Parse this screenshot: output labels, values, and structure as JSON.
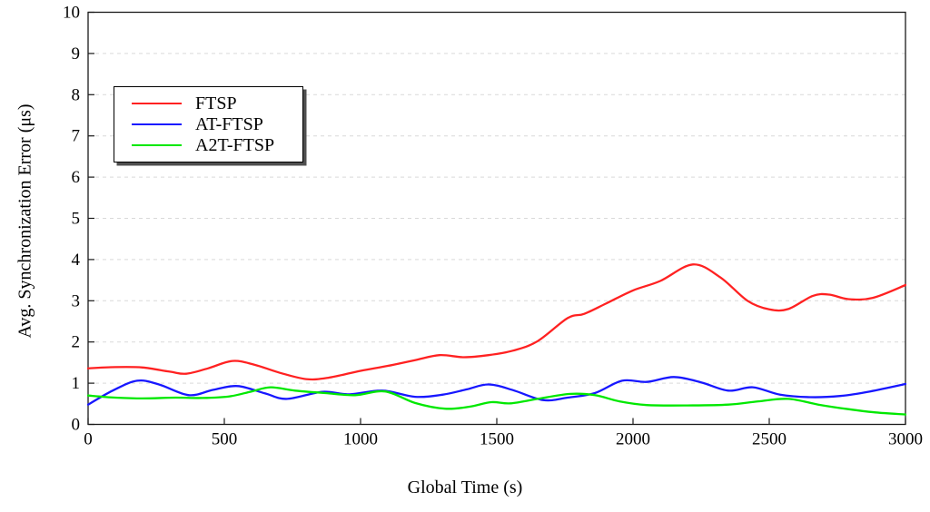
{
  "chart_data": {
    "type": "line",
    "title": "",
    "xlabel": "Global Time (s)",
    "ylabel": "Avg. Synchronization Error (μs)",
    "xlim": [
      0,
      3000
    ],
    "ylim": [
      0,
      10
    ],
    "xticks": [
      0,
      500,
      1000,
      1500,
      2000,
      2500,
      3000
    ],
    "yticks": [
      0,
      1,
      2,
      3,
      4,
      5,
      6,
      7,
      8,
      9,
      10
    ],
    "grid": "horizontal-dashed",
    "legend_position": "top-left",
    "series": [
      {
        "name": "FTSP",
        "color": "#ff2121",
        "points": [
          [
            0,
            1.36
          ],
          [
            100,
            1.39
          ],
          [
            200,
            1.38
          ],
          [
            300,
            1.28
          ],
          [
            360,
            1.23
          ],
          [
            440,
            1.36
          ],
          [
            530,
            1.54
          ],
          [
            610,
            1.45
          ],
          [
            700,
            1.26
          ],
          [
            800,
            1.1
          ],
          [
            880,
            1.13
          ],
          [
            1000,
            1.3
          ],
          [
            1100,
            1.42
          ],
          [
            1200,
            1.56
          ],
          [
            1290,
            1.68
          ],
          [
            1380,
            1.63
          ],
          [
            1470,
            1.68
          ],
          [
            1560,
            1.79
          ],
          [
            1650,
            2.02
          ],
          [
            1760,
            2.58
          ],
          [
            1820,
            2.68
          ],
          [
            1900,
            2.93
          ],
          [
            2000,
            3.25
          ],
          [
            2100,
            3.48
          ],
          [
            2220,
            3.88
          ],
          [
            2320,
            3.57
          ],
          [
            2420,
            3.0
          ],
          [
            2500,
            2.79
          ],
          [
            2570,
            2.8
          ],
          [
            2660,
            3.12
          ],
          [
            2720,
            3.15
          ],
          [
            2790,
            3.04
          ],
          [
            2880,
            3.07
          ],
          [
            3000,
            3.38
          ]
        ]
      },
      {
        "name": "AT-FTSP",
        "color": "#1717ff",
        "points": [
          [
            0,
            0.48
          ],
          [
            90,
            0.82
          ],
          [
            180,
            1.06
          ],
          [
            260,
            0.97
          ],
          [
            370,
            0.71
          ],
          [
            460,
            0.84
          ],
          [
            550,
            0.93
          ],
          [
            650,
            0.75
          ],
          [
            730,
            0.62
          ],
          [
            860,
            0.79
          ],
          [
            960,
            0.73
          ],
          [
            1080,
            0.82
          ],
          [
            1200,
            0.67
          ],
          [
            1300,
            0.72
          ],
          [
            1390,
            0.85
          ],
          [
            1470,
            0.97
          ],
          [
            1560,
            0.83
          ],
          [
            1670,
            0.59
          ],
          [
            1760,
            0.65
          ],
          [
            1860,
            0.76
          ],
          [
            1960,
            1.06
          ],
          [
            2050,
            1.03
          ],
          [
            2150,
            1.15
          ],
          [
            2250,
            1.02
          ],
          [
            2350,
            0.82
          ],
          [
            2440,
            0.9
          ],
          [
            2540,
            0.72
          ],
          [
            2650,
            0.66
          ],
          [
            2760,
            0.69
          ],
          [
            2870,
            0.8
          ],
          [
            3000,
            0.98
          ]
        ]
      },
      {
        "name": "A2T-FTSP",
        "color": "#00e800",
        "points": [
          [
            0,
            0.7
          ],
          [
            100,
            0.65
          ],
          [
            200,
            0.63
          ],
          [
            320,
            0.65
          ],
          [
            420,
            0.64
          ],
          [
            520,
            0.68
          ],
          [
            600,
            0.8
          ],
          [
            670,
            0.9
          ],
          [
            760,
            0.82
          ],
          [
            870,
            0.76
          ],
          [
            980,
            0.71
          ],
          [
            1090,
            0.8
          ],
          [
            1200,
            0.52
          ],
          [
            1310,
            0.38
          ],
          [
            1400,
            0.43
          ],
          [
            1480,
            0.54
          ],
          [
            1550,
            0.51
          ],
          [
            1650,
            0.62
          ],
          [
            1770,
            0.74
          ],
          [
            1860,
            0.71
          ],
          [
            1950,
            0.56
          ],
          [
            2050,
            0.47
          ],
          [
            2200,
            0.46
          ],
          [
            2350,
            0.48
          ],
          [
            2460,
            0.56
          ],
          [
            2570,
            0.62
          ],
          [
            2680,
            0.48
          ],
          [
            2790,
            0.37
          ],
          [
            2890,
            0.29
          ],
          [
            3000,
            0.24
          ]
        ]
      }
    ],
    "colors": {
      "frame": "#1a1a1a",
      "grid": "#d9d9d9",
      "tick_text": "#000000",
      "legend_shadow": "#4f4f4f"
    }
  }
}
